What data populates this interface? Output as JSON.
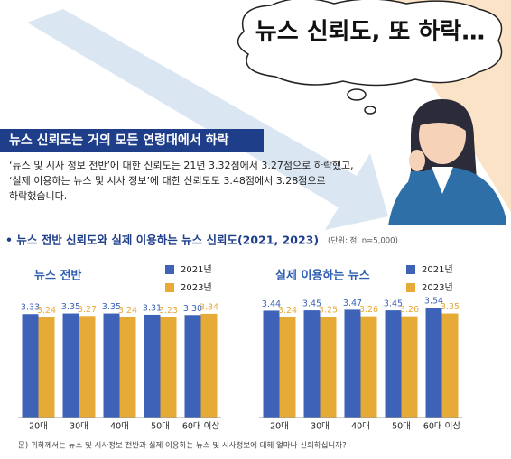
{
  "headline": "뉴스 신뢰도, 또 하락…",
  "section_title": "뉴스 신뢰도는 거의 모든 연령대에서 하락",
  "body": [
    "‘뉴스 및 시사 정보 전반’에 대한 신뢰도는 21년 3.32점에서 3.27점으로 하락했고,",
    "‘실제 이용하는 뉴스 및 시사 정보’에 대한 신뢰도도 3.48점에서 3.28점으로",
    "하락했습니다."
  ],
  "chart_heading": "• 뉴스 전반 신뢰도와 실제 이용하는 뉴스 신뢰도(2021, 2023)",
  "unit_note": "(단위: 점, n=5,000)",
  "footnote": "문) 귀하께서는 뉴스 및 시사정보 전반과 실제 이용하는 뉴스 및 시사정보에 대해 얼마나 신뢰하십니까?",
  "chart_data": [
    {
      "type": "bar",
      "title": "뉴스 전반",
      "categories": [
        "20대",
        "30대",
        "40대",
        "50대",
        "60대 이상"
      ],
      "series": [
        {
          "name": "2021년",
          "color": "#3d62b8",
          "values": [
            3.33,
            3.35,
            3.35,
            3.31,
            3.3
          ],
          "value_labels": [
            "3.33",
            "3.35",
            "3.35",
            "3.31",
            "3.30"
          ]
        },
        {
          "name": "2023년",
          "color": "#e6aa36",
          "values": [
            3.24,
            3.27,
            3.24,
            3.23,
            3.34
          ],
          "value_labels": [
            "3.24",
            "3.27",
            "3.24",
            "3.23",
            "3.34"
          ]
        }
      ]
    },
    {
      "type": "bar",
      "title": "실제 이용하는 뉴스",
      "categories": [
        "20대",
        "30대",
        "40대",
        "50대",
        "60대 이상"
      ],
      "series": [
        {
          "name": "2021년",
          "color": "#3d62b8",
          "values": [
            3.44,
            3.45,
            3.47,
            3.45,
            3.54
          ],
          "value_labels": [
            "3.44",
            "3.45",
            "3.47",
            "3.45",
            "3.54"
          ]
        },
        {
          "name": "2023년",
          "color": "#e6aa36",
          "values": [
            3.24,
            3.25,
            3.26,
            3.26,
            3.35
          ],
          "value_labels": [
            "3.24",
            "3.25",
            "3.26",
            "3.26",
            "3.35"
          ]
        }
      ]
    }
  ]
}
